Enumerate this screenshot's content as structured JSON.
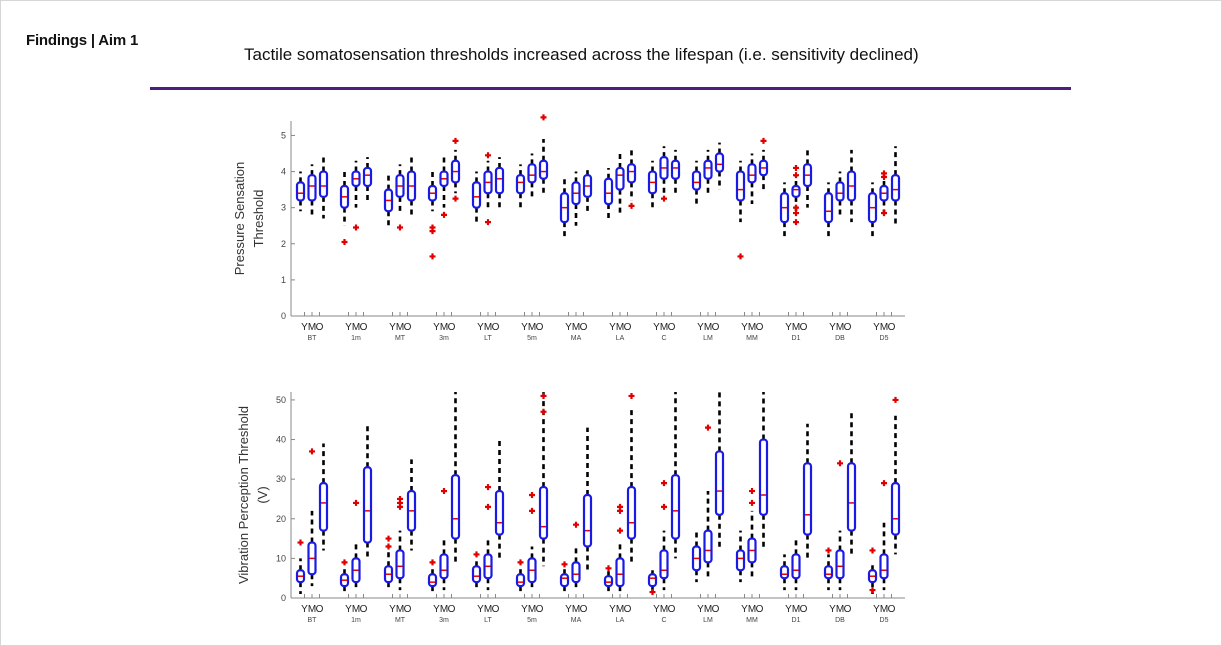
{
  "header": {
    "title": "Findings | Aim 1",
    "subtitle": "Tactile somatosensation thresholds increased across the lifespan (i.e. sensitivity declined)"
  },
  "colors": {
    "rule": "#4b1e7f",
    "box": "#1a1ae6",
    "outlier": "#e00000",
    "whisker": "#000000"
  },
  "chart_data": [
    {
      "type": "box",
      "ylabel_lines": [
        "Pressure Sensation",
        "Threshold"
      ],
      "ylim": [
        0,
        5.4
      ],
      "yticks": [
        0,
        1,
        2,
        3,
        4,
        5
      ],
      "groups": [
        "BT",
        "1m",
        "MT",
        "3m",
        "LT",
        "5m",
        "MA",
        "LA",
        "C",
        "LM",
        "MM",
        "D1",
        "DB",
        "D5"
      ],
      "subgroups": [
        "Y",
        "M",
        "O"
      ],
      "boxes": [
        [
          {
            "q1": 3.2,
            "q3": 3.7,
            "med": 3.4,
            "lo": 2.9,
            "hi": 4.0,
            "out": []
          },
          {
            "q1": 3.2,
            "q3": 3.9,
            "med": 3.6,
            "lo": 2.7,
            "hi": 4.2,
            "out": []
          },
          {
            "q1": 3.3,
            "q3": 4.0,
            "med": 3.6,
            "lo": 2.7,
            "hi": 4.4,
            "out": []
          }
        ],
        [
          {
            "q1": 3.0,
            "q3": 3.6,
            "med": 3.3,
            "lo": 2.5,
            "hi": 4.0,
            "out": [
              2.05
            ]
          },
          {
            "q1": 3.6,
            "q3": 4.0,
            "med": 3.8,
            "lo": 3.0,
            "hi": 4.3,
            "out": [
              2.45
            ]
          },
          {
            "q1": 3.6,
            "q3": 4.1,
            "med": 3.9,
            "lo": 3.2,
            "hi": 4.4,
            "out": []
          }
        ],
        [
          {
            "q1": 2.9,
            "q3": 3.5,
            "med": 3.2,
            "lo": 2.5,
            "hi": 3.9,
            "out": []
          },
          {
            "q1": 3.3,
            "q3": 3.9,
            "med": 3.6,
            "lo": 2.8,
            "hi": 4.2,
            "out": [
              2.45
            ]
          },
          {
            "q1": 3.2,
            "q3": 4.0,
            "med": 3.6,
            "lo": 2.7,
            "hi": 4.4,
            "out": []
          }
        ],
        [
          {
            "q1": 3.2,
            "q3": 3.6,
            "med": 3.4,
            "lo": 2.9,
            "hi": 4.0,
            "out": [
              1.65,
              2.35,
              2.45
            ]
          },
          {
            "q1": 3.6,
            "q3": 4.0,
            "med": 3.8,
            "lo": 3.0,
            "hi": 4.4,
            "out": [
              2.8
            ]
          },
          {
            "q1": 3.7,
            "q3": 4.3,
            "med": 4.0,
            "lo": 3.4,
            "hi": 4.6,
            "out": [
              3.25,
              4.85
            ]
          }
        ],
        [
          {
            "q1": 3.0,
            "q3": 3.7,
            "med": 3.3,
            "lo": 2.6,
            "hi": 4.0,
            "out": []
          },
          {
            "q1": 3.4,
            "q3": 4.0,
            "med": 3.7,
            "lo": 2.9,
            "hi": 4.3,
            "out": [
              2.6,
              4.45
            ]
          },
          {
            "q1": 3.4,
            "q3": 4.1,
            "med": 3.8,
            "lo": 3.0,
            "hi": 4.4,
            "out": []
          }
        ],
        [
          {
            "q1": 3.4,
            "q3": 3.9,
            "med": 3.7,
            "lo": 2.9,
            "hi": 4.2,
            "out": []
          },
          {
            "q1": 3.7,
            "q3": 4.2,
            "med": 3.9,
            "lo": 3.3,
            "hi": 4.5,
            "out": []
          },
          {
            "q1": 3.8,
            "q3": 4.3,
            "med": 4.0,
            "lo": 3.4,
            "hi": 4.9,
            "out": [
              5.5
            ]
          }
        ],
        [
          {
            "q1": 2.6,
            "q3": 3.4,
            "med": 3.0,
            "lo": 2.1,
            "hi": 3.8,
            "out": []
          },
          {
            "q1": 3.1,
            "q3": 3.7,
            "med": 3.4,
            "lo": 2.5,
            "hi": 4.0,
            "out": []
          },
          {
            "q1": 3.3,
            "q3": 3.9,
            "med": 3.6,
            "lo": 2.8,
            "hi": 4.1,
            "out": []
          }
        ],
        [
          {
            "q1": 3.1,
            "q3": 3.8,
            "med": 3.4,
            "lo": 2.7,
            "hi": 4.1,
            "out": []
          },
          {
            "q1": 3.5,
            "q3": 4.1,
            "med": 3.9,
            "lo": 2.8,
            "hi": 4.5,
            "out": []
          },
          {
            "q1": 3.7,
            "q3": 4.2,
            "med": 4.0,
            "lo": 3.2,
            "hi": 4.6,
            "out": [
              3.05
            ]
          }
        ],
        [
          {
            "q1": 3.4,
            "q3": 4.0,
            "med": 3.7,
            "lo": 3.0,
            "hi": 4.3,
            "out": []
          },
          {
            "q1": 3.8,
            "q3": 4.4,
            "med": 4.1,
            "lo": 3.4,
            "hi": 4.7,
            "out": [
              3.25
            ]
          },
          {
            "q1": 3.8,
            "q3": 4.3,
            "med": 4.1,
            "lo": 3.4,
            "hi": 4.6,
            "out": []
          }
        ],
        [
          {
            "q1": 3.5,
            "q3": 4.0,
            "med": 3.7,
            "lo": 3.0,
            "hi": 4.3,
            "out": []
          },
          {
            "q1": 3.8,
            "q3": 4.3,
            "med": 4.1,
            "lo": 3.4,
            "hi": 4.6,
            "out": []
          },
          {
            "q1": 4.0,
            "q3": 4.5,
            "med": 4.2,
            "lo": 3.5,
            "hi": 4.8,
            "out": []
          }
        ],
        [
          {
            "q1": 3.2,
            "q3": 4.0,
            "med": 3.5,
            "lo": 2.6,
            "hi": 4.3,
            "out": [
              1.65
            ]
          },
          {
            "q1": 3.7,
            "q3": 4.2,
            "med": 3.9,
            "lo": 3.1,
            "hi": 4.5,
            "out": []
          },
          {
            "q1": 3.9,
            "q3": 4.3,
            "med": 4.1,
            "lo": 3.5,
            "hi": 4.6,
            "out": [
              4.85
            ]
          }
        ],
        [
          {
            "q1": 2.6,
            "q3": 3.4,
            "med": 3.0,
            "lo": 2.1,
            "hi": 3.7,
            "out": []
          },
          {
            "q1": 3.3,
            "q3": 3.6,
            "med": 3.5,
            "lo": 2.9,
            "hi": 3.9,
            "out": [
              2.6,
              2.85,
              3.0,
              3.9,
              4.1
            ]
          },
          {
            "q1": 3.6,
            "q3": 4.2,
            "med": 3.9,
            "lo": 3.0,
            "hi": 4.6,
            "out": []
          }
        ],
        [
          {
            "q1": 2.6,
            "q3": 3.4,
            "med": 2.9,
            "lo": 2.2,
            "hi": 3.7,
            "out": []
          },
          {
            "q1": 3.2,
            "q3": 3.7,
            "med": 3.4,
            "lo": 2.7,
            "hi": 4.0,
            "out": []
          },
          {
            "q1": 3.2,
            "q3": 4.0,
            "med": 3.6,
            "lo": 2.6,
            "hi": 4.6,
            "out": []
          }
        ],
        [
          {
            "q1": 2.6,
            "q3": 3.4,
            "med": 3.0,
            "lo": 2.1,
            "hi": 3.7,
            "out": []
          },
          {
            "q1": 3.2,
            "q3": 3.6,
            "med": 3.4,
            "lo": 2.7,
            "hi": 3.9,
            "out": [
              2.85,
              3.85,
              3.95
            ]
          },
          {
            "q1": 3.2,
            "q3": 3.9,
            "med": 3.5,
            "lo": 2.5,
            "hi": 4.7,
            "out": []
          }
        ]
      ]
    },
    {
      "type": "box",
      "ylabel_lines": [
        "Vibration Perception Threshold",
        "(V)"
      ],
      "ylim": [
        0,
        52
      ],
      "yticks": [
        0,
        10,
        20,
        30,
        40,
        50
      ],
      "groups": [
        "BT",
        "1m",
        "MT",
        "3m",
        "LT",
        "5m",
        "MA",
        "LA",
        "C",
        "LM",
        "MM",
        "D1",
        "DB",
        "D5"
      ],
      "subgroups": [
        "Y",
        "M",
        "O"
      ],
      "boxes": [
        [
          {
            "q1": 4,
            "q3": 7,
            "med": 5.5,
            "lo": 1,
            "hi": 10,
            "out": [
              14
            ]
          },
          {
            "q1": 6,
            "q3": 14,
            "med": 10,
            "lo": 3,
            "hi": 22,
            "out": [
              37
            ]
          },
          {
            "q1": 17,
            "q3": 29,
            "med": 24,
            "lo": 12,
            "hi": 39,
            "out": []
          }
        ],
        [
          {
            "q1": 3,
            "q3": 6,
            "med": 4.5,
            "lo": 1,
            "hi": 8,
            "out": [
              9
            ]
          },
          {
            "q1": 4,
            "q3": 10,
            "med": 7,
            "lo": 2,
            "hi": 14,
            "out": [
              24
            ]
          },
          {
            "q1": 14,
            "q3": 33,
            "med": 22,
            "lo": 10,
            "hi": 44,
            "out": []
          }
        ],
        [
          {
            "q1": 4,
            "q3": 8,
            "med": 6,
            "lo": 2,
            "hi": 12,
            "out": [
              13,
              15
            ]
          },
          {
            "q1": 5,
            "q3": 12,
            "med": 8,
            "lo": 2,
            "hi": 17,
            "out": [
              23,
              24,
              25
            ]
          },
          {
            "q1": 17,
            "q3": 27,
            "med": 22,
            "lo": 12,
            "hi": 35,
            "out": []
          }
        ],
        [
          {
            "q1": 3,
            "q3": 6,
            "med": 4,
            "lo": 1,
            "hi": 8,
            "out": [
              9
            ]
          },
          {
            "q1": 5,
            "q3": 11,
            "med": 7,
            "lo": 2,
            "hi": 15,
            "out": [
              27
            ]
          },
          {
            "q1": 15,
            "q3": 31,
            "med": 20,
            "lo": 9,
            "hi": 52,
            "out": []
          }
        ],
        [
          {
            "q1": 4,
            "q3": 8,
            "med": 5.5,
            "lo": 2,
            "hi": 10,
            "out": [
              11
            ]
          },
          {
            "q1": 5,
            "q3": 11,
            "med": 8,
            "lo": 2,
            "hi": 15,
            "out": [
              23,
              28
            ]
          },
          {
            "q1": 16,
            "q3": 27,
            "med": 19,
            "lo": 10,
            "hi": 40,
            "out": []
          }
        ],
        [
          {
            "q1": 3,
            "q3": 6,
            "med": 4,
            "lo": 1,
            "hi": 8,
            "out": [
              9
            ]
          },
          {
            "q1": 4,
            "q3": 10,
            "med": 7,
            "lo": 2,
            "hi": 13,
            "out": [
              22,
              26
            ]
          },
          {
            "q1": 15,
            "q3": 28,
            "med": 18,
            "lo": 8,
            "hi": 52,
            "out": [
              47,
              51
            ]
          }
        ],
        [
          {
            "q1": 3,
            "q3": 6,
            "med": 5,
            "lo": 1,
            "hi": 8,
            "out": [
              8.5
            ]
          },
          {
            "q1": 4,
            "q3": 9,
            "med": 6,
            "lo": 2,
            "hi": 13,
            "out": [
              18.5
            ]
          },
          {
            "q1": 13,
            "q3": 26,
            "med": 17,
            "lo": 7,
            "hi": 43,
            "out": []
          }
        ],
        [
          {
            "q1": 3,
            "q3": 5.5,
            "med": 4,
            "lo": 1,
            "hi": 7,
            "out": [
              7.5
            ]
          },
          {
            "q1": 3,
            "q3": 10,
            "med": 6,
            "lo": 1,
            "hi": 14,
            "out": [
              17,
              22,
              23
            ]
          },
          {
            "q1": 15,
            "q3": 28,
            "med": 19,
            "lo": 9,
            "hi": 48,
            "out": [
              51
            ]
          }
        ],
        [
          {
            "q1": 3,
            "q3": 6,
            "med": 5,
            "lo": 1,
            "hi": 7,
            "out": [
              1.5
            ]
          },
          {
            "q1": 5,
            "q3": 12,
            "med": 7,
            "lo": 2,
            "hi": 17,
            "out": [
              23,
              29
            ]
          },
          {
            "q1": 15,
            "q3": 31,
            "med": 22,
            "lo": 10,
            "hi": 52,
            "out": []
          }
        ],
        [
          {
            "q1": 7,
            "q3": 13,
            "med": 10,
            "lo": 4,
            "hi": 17,
            "out": []
          },
          {
            "q1": 9,
            "q3": 17,
            "med": 12,
            "lo": 5,
            "hi": 27,
            "out": [
              43
            ]
          },
          {
            "q1": 21,
            "q3": 37,
            "med": 27,
            "lo": 12,
            "hi": 52,
            "out": []
          }
        ],
        [
          {
            "q1": 7,
            "q3": 12,
            "med": 10,
            "lo": 4,
            "hi": 17,
            "out": []
          },
          {
            "q1": 9,
            "q3": 15,
            "med": 12,
            "lo": 5,
            "hi": 22,
            "out": [
              24,
              27
            ]
          },
          {
            "q1": 21,
            "q3": 40,
            "med": 26,
            "lo": 12,
            "hi": 52,
            "out": []
          }
        ],
        [
          {
            "q1": 5,
            "q3": 8,
            "med": 6,
            "lo": 2,
            "hi": 11,
            "out": []
          },
          {
            "q1": 5,
            "q3": 11,
            "med": 7,
            "lo": 2,
            "hi": 15,
            "out": []
          },
          {
            "q1": 16,
            "q3": 34,
            "med": 21,
            "lo": 10,
            "hi": 44,
            "out": []
          }
        ],
        [
          {
            "q1": 5,
            "q3": 8,
            "med": 6,
            "lo": 2,
            "hi": 11,
            "out": [
              12
            ]
          },
          {
            "q1": 5,
            "q3": 12,
            "med": 8,
            "lo": 2,
            "hi": 17,
            "out": [
              34
            ]
          },
          {
            "q1": 17,
            "q3": 34,
            "med": 24,
            "lo": 11,
            "hi": 47,
            "out": []
          }
        ],
        [
          {
            "q1": 4,
            "q3": 7,
            "med": 5.5,
            "lo": 1,
            "hi": 9,
            "out": [
              2,
              12
            ]
          },
          {
            "q1": 5,
            "q3": 11,
            "med": 7,
            "lo": 2,
            "hi": 19,
            "out": [
              29
            ]
          },
          {
            "q1": 16,
            "q3": 29,
            "med": 20,
            "lo": 11,
            "hi": 46,
            "out": [
              50
            ]
          }
        ]
      ]
    }
  ]
}
